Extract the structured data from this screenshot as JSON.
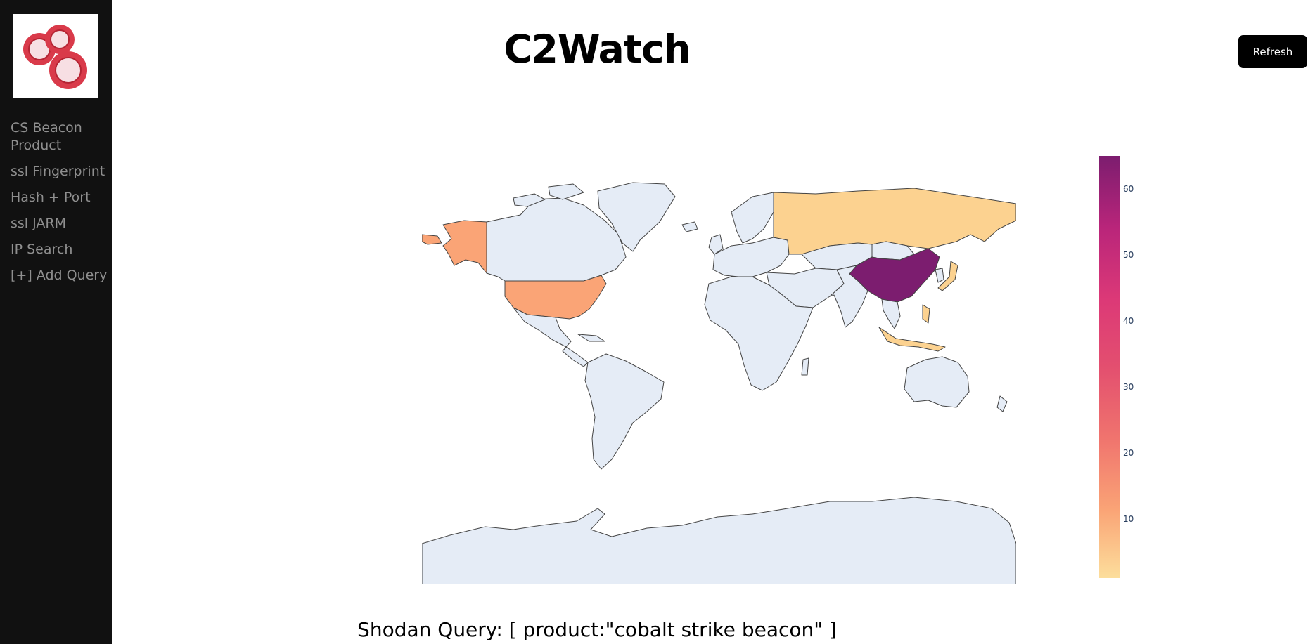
{
  "sidebar": {
    "logo_icon": "three-rings-logo-icon",
    "items": [
      {
        "label": "CS Beacon Product"
      },
      {
        "label": "ssl Fingerprint"
      },
      {
        "label": "Hash + Port"
      },
      {
        "label": "ssl JARM"
      },
      {
        "label": "IP Search"
      },
      {
        "label": "[+] Add Query"
      }
    ]
  },
  "header": {
    "title": "C2Watch",
    "refresh_label": "Refresh"
  },
  "chart_data": {
    "type": "choropleth",
    "colorscale": [
      "#fcde9c",
      "#faa476",
      "#f0746e",
      "#e34f6f",
      "#dc3977",
      "#b9257a",
      "#7c1d6f"
    ],
    "color_range": [
      1,
      64
    ],
    "colorbar_ticks": [
      "10",
      "20",
      "30",
      "40",
      "50",
      "60"
    ],
    "values": [
      {
        "region": "China",
        "value": 64
      },
      {
        "region": "United States",
        "value": 10
      },
      {
        "region": "Russia",
        "value": 3
      },
      {
        "region": "Japan",
        "value": 3
      },
      {
        "region": "Indonesia",
        "value": 2
      },
      {
        "region": "Philippines",
        "value": 2
      }
    ],
    "base_color": "#e5ecf6",
    "border_color": "#444444"
  },
  "footer": {
    "query": "Shodan Query: [ product:\"cobalt strike beacon\" ]"
  }
}
